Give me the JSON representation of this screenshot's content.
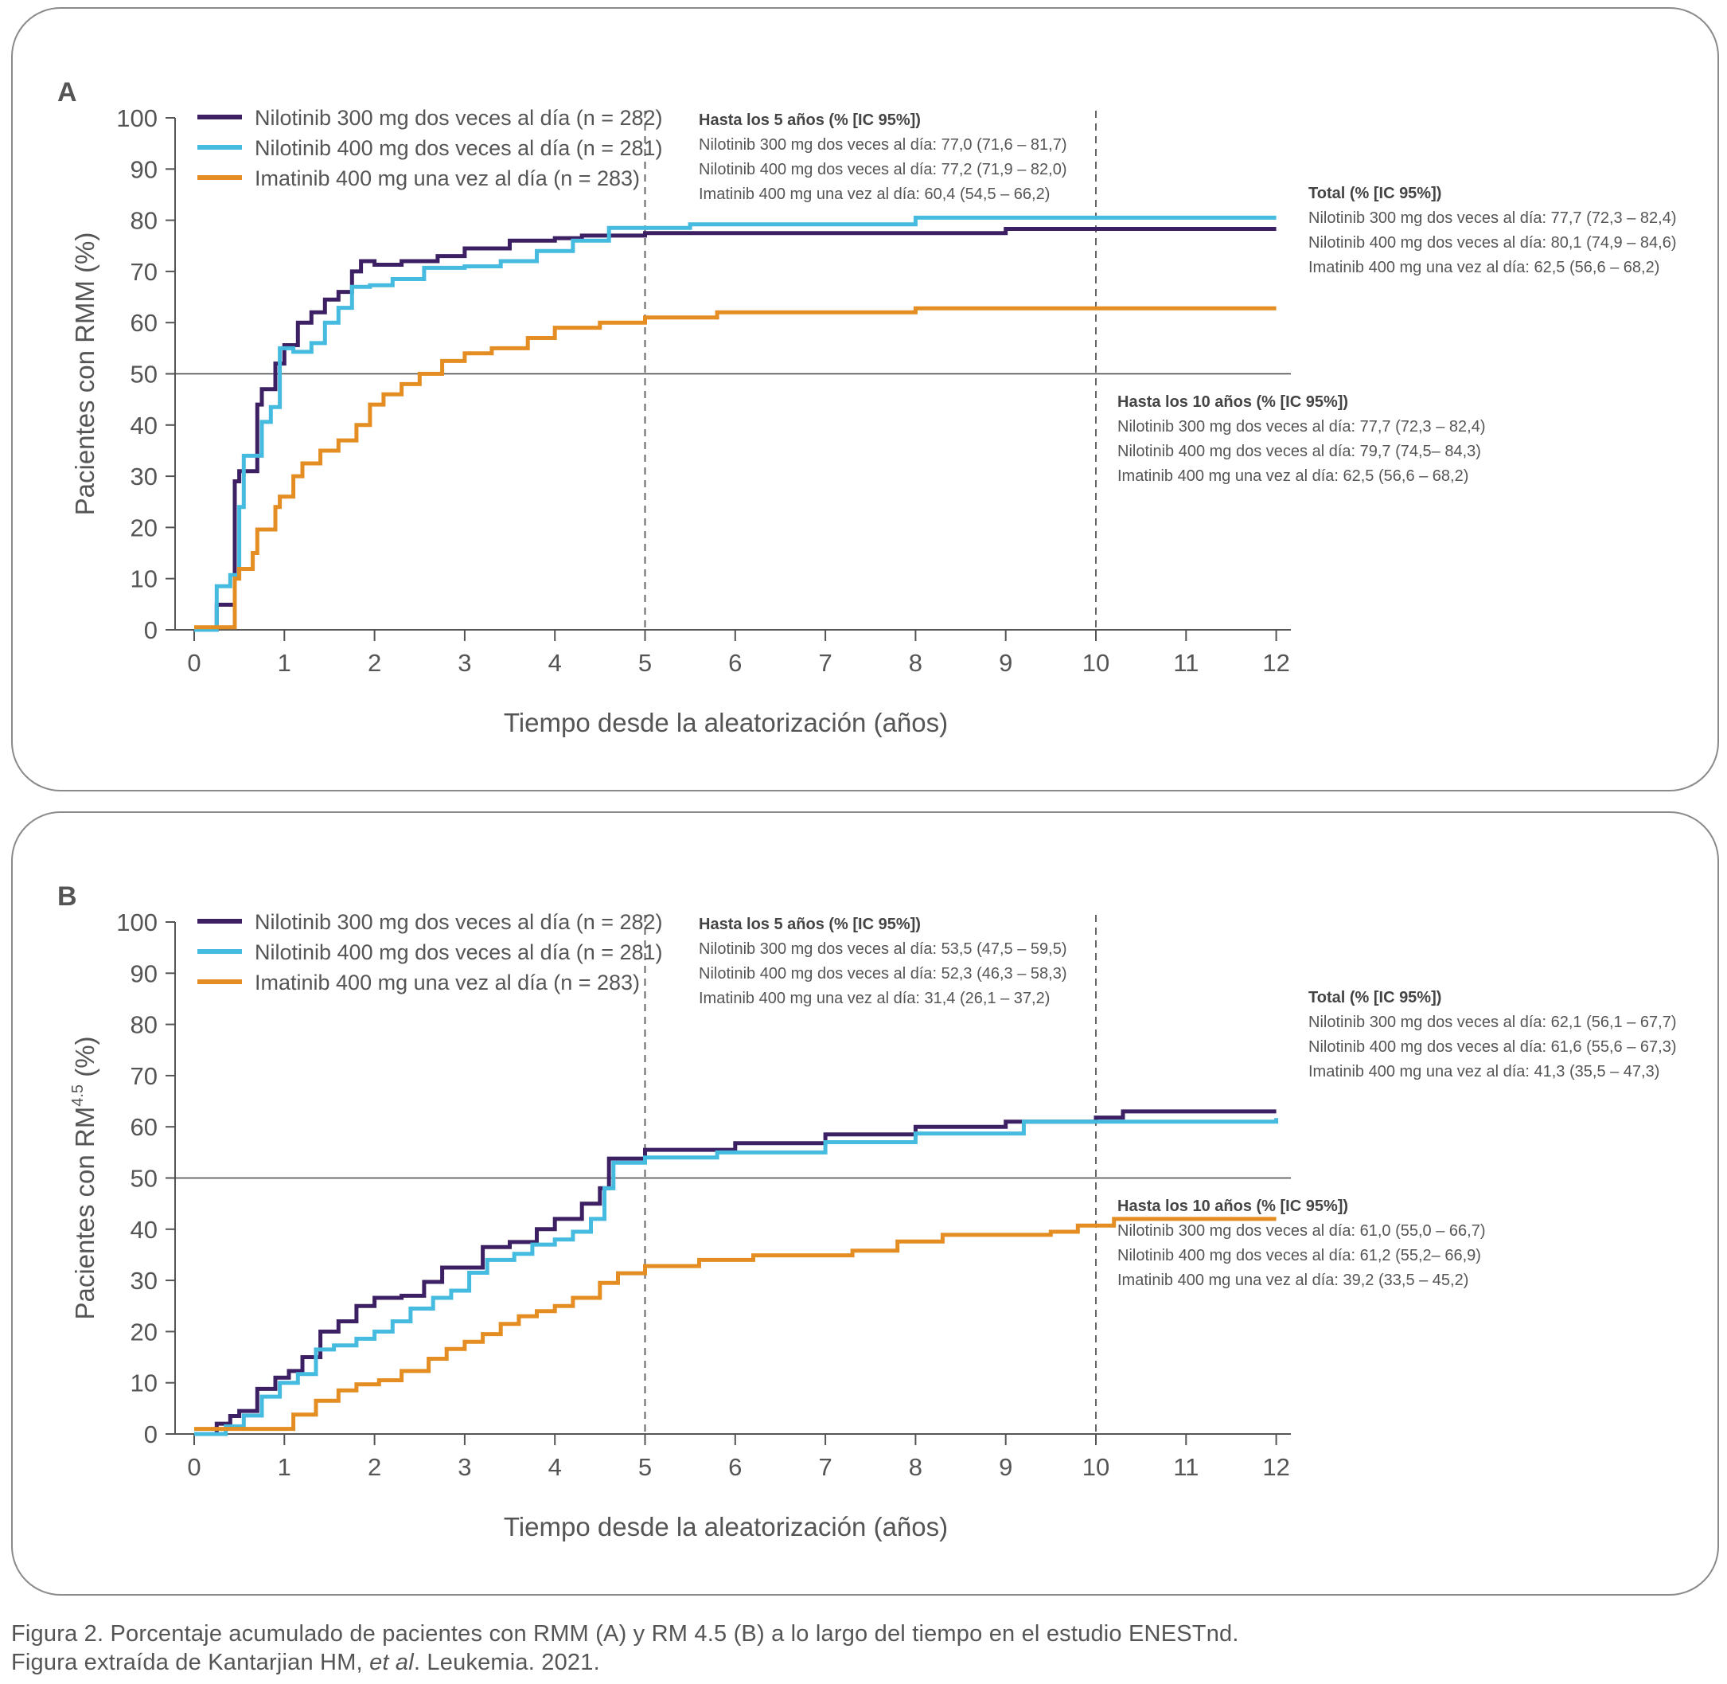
{
  "colors": {
    "nil300": "#3d2064",
    "nil400": "#45bbdf",
    "ima400": "#e48d22",
    "axis": "#555555",
    "ref": "#666666",
    "text": "#555555"
  },
  "caption": {
    "line1": "Figura 2. Porcentaje acumulado de pacientes con RMM (A) y RM 4.5 (B) a lo largo del tiempo en el estudio ENESTnd.",
    "line2_pre": "Figura extraída de Kantarjian HM, ",
    "line2_em": "et al",
    "line2_post": ". Leukemia. 2021."
  },
  "chart_data": [
    {
      "type": "line",
      "panel_label": "A",
      "xlabel": "Tiempo desde la aleatorización (años)",
      "ylabel": "Pacientes con RMM (%)",
      "ylabel_sup": "",
      "ylabel_tail": "",
      "xlim": [
        0,
        12
      ],
      "ylim": [
        0,
        100
      ],
      "xticks": [
        "0",
        "1",
        "2",
        "3",
        "4",
        "5",
        "6",
        "7",
        "8",
        "9",
        "10",
        "11",
        "12"
      ],
      "yticks": [
        "0",
        "10",
        "20",
        "30",
        "40",
        "50",
        "60",
        "70",
        "80",
        "90",
        "100"
      ],
      "reference_line_y": 50,
      "dashed_vertical_x": [
        5,
        10
      ],
      "legend": [
        "Nilotinib 300 mg dos veces al día (n = 282)",
        "Nilotinib 400 mg dos veces al día (n = 281)",
        "Imatinib 400 mg una vez al día (n = 283)"
      ],
      "series": [
        {
          "name": "Nilotinib 300 mg dos veces al día (n = 282)",
          "color_key": "nil300",
          "x": [
            0,
            0.25,
            0.45,
            0.5,
            0.7,
            0.75,
            0.9,
            1.0,
            1.15,
            1.3,
            1.45,
            1.6,
            1.75,
            1.85,
            2.0,
            2.3,
            2.7,
            3.0,
            3.5,
            4.0,
            4.3,
            5.0,
            9.0,
            12.0
          ],
          "y": [
            0,
            4.9,
            29,
            31,
            44,
            47,
            52,
            55.6,
            60,
            62,
            64.5,
            66,
            70,
            72,
            71.3,
            72,
            73,
            74.5,
            76,
            76.5,
            77,
            77.5,
            78.3,
            78.3
          ]
        },
        {
          "name": "Nilotinib 400 mg dos veces al día (n = 281)",
          "color_key": "nil400",
          "x": [
            0,
            0.25,
            0.4,
            0.5,
            0.55,
            0.7,
            0.75,
            0.85,
            0.95,
            1.1,
            1.3,
            1.45,
            1.6,
            1.75,
            1.95,
            2.2,
            2.55,
            3.0,
            3.4,
            3.8,
            4.2,
            4.6,
            5.5,
            8.0,
            12.0
          ],
          "y": [
            0,
            8.5,
            10.7,
            24,
            34,
            34,
            40.6,
            43.5,
            55,
            54.3,
            56,
            60,
            62.9,
            67,
            67.3,
            68.5,
            70.7,
            71,
            72,
            74,
            76,
            78.5,
            79.2,
            80.5,
            80.5
          ]
        },
        {
          "name": "Imatinib 400 mg una vez al día (n = 283)",
          "color_key": "ima400",
          "x": [
            0,
            0.45,
            0.5,
            0.65,
            0.7,
            0.9,
            0.95,
            1.1,
            1.2,
            1.4,
            1.6,
            1.8,
            1.95,
            2.1,
            2.3,
            2.5,
            2.75,
            3.0,
            3.3,
            3.7,
            4.0,
            4.5,
            5.0,
            5.8,
            8.0,
            12.0
          ],
          "y": [
            0.5,
            10,
            11.9,
            15,
            19.6,
            24,
            26,
            30,
            32.5,
            35,
            37,
            40,
            44,
            46,
            48,
            50,
            52.5,
            54,
            55,
            57,
            59,
            60,
            61,
            62,
            62.8,
            62.8
          ]
        }
      ],
      "annotations": [
        {
          "title": "Hasta los 5 años (% [IC 95%])",
          "lines": [
            "Nilotinib 300 mg dos veces al día: 77,0 (71,6 – 81,7)",
            "Nilotinib 400 mg dos veces al día: 77,2 (71,9 – 82,0)",
            "Imatinib 400 mg una vez al día: 60,4 (54,5 – 66,2)"
          ]
        },
        {
          "title": "Total (% [IC 95%])",
          "lines": [
            "Nilotinib 300 mg dos veces al día: 77,7 (72,3 – 82,4)",
            "Nilotinib 400 mg dos veces al día: 80,1 (74,9 – 84,6)",
            "Imatinib 400 mg una vez al día: 62,5 (56,6 – 68,2)"
          ]
        },
        {
          "title": "Hasta los 10 años (% [IC 95%])",
          "lines": [
            "Nilotinib 300 mg dos veces al día: 77,7 (72,3 – 82,4)",
            "Nilotinib 400 mg dos veces al día: 79,7 (74,5– 84,3)",
            "Imatinib 400 mg una vez al día: 62,5 (56,6 – 68,2)"
          ]
        }
      ]
    },
    {
      "type": "line",
      "panel_label": "B",
      "xlabel": "Tiempo desde la aleatorización (años)",
      "ylabel": "Pacientes con RM",
      "ylabel_sup": "4.5",
      "ylabel_tail": " (%)",
      "xlim": [
        0,
        12
      ],
      "ylim": [
        0,
        100
      ],
      "xticks": [
        "0",
        "1",
        "2",
        "3",
        "4",
        "5",
        "6",
        "7",
        "8",
        "9",
        "10",
        "11",
        "12"
      ],
      "yticks": [
        "0",
        "10",
        "20",
        "30",
        "40",
        "50",
        "60",
        "70",
        "80",
        "90",
        "100"
      ],
      "reference_line_y": 50,
      "dashed_vertical_x": [
        5,
        10
      ],
      "legend": [
        "Nilotinib 300 mg dos veces al día (n = 282)",
        "Nilotinib 400 mg dos veces al día (n = 281)",
        "Imatinib 400 mg una vez al día (n = 283)"
      ],
      "series": [
        {
          "name": "Nilotinib 300 mg dos veces al día (n = 282)",
          "color_key": "nil300",
          "x": [
            0,
            0.25,
            0.4,
            0.5,
            0.7,
            0.9,
            1.05,
            1.2,
            1.4,
            1.6,
            1.8,
            2.0,
            2.3,
            2.55,
            2.75,
            3.0,
            3.2,
            3.5,
            3.8,
            4.0,
            4.3,
            4.5,
            4.6,
            5.0,
            6.0,
            7.0,
            8.0,
            9.0,
            10.0,
            10.3,
            12.0
          ],
          "y": [
            0,
            2,
            3.5,
            4.5,
            8.8,
            11,
            12.3,
            15,
            20,
            22,
            25,
            26.6,
            27,
            29.7,
            32.5,
            32.5,
            36.5,
            37.5,
            40,
            42,
            45,
            48,
            53.8,
            55.5,
            56.8,
            58.5,
            60,
            61,
            61.8,
            63,
            63
          ]
        },
        {
          "name": "Nilotinib 400 mg dos veces al día (n = 281)",
          "color_key": "nil400",
          "x": [
            0,
            0.35,
            0.55,
            0.75,
            0.95,
            1.15,
            1.35,
            1.55,
            1.8,
            2.0,
            2.2,
            2.4,
            2.65,
            2.85,
            3.05,
            3.25,
            3.55,
            3.75,
            4.0,
            4.2,
            4.4,
            4.55,
            4.65,
            5.0,
            5.8,
            7.0,
            8.0,
            9.2,
            12.0
          ],
          "y": [
            0,
            1.5,
            3.6,
            7.3,
            10,
            11.7,
            16.5,
            17.3,
            18.6,
            20,
            22,
            24.5,
            26.6,
            28,
            31.5,
            34,
            35.2,
            37,
            38,
            39.5,
            42,
            48,
            53,
            54,
            55,
            57,
            58.7,
            61,
            61.7
          ]
        },
        {
          "name": "Imatinib 400 mg una vez al día (n = 283)",
          "color_key": "ima400",
          "x": [
            0,
            0.9,
            1.1,
            1.35,
            1.6,
            1.8,
            2.05,
            2.3,
            2.6,
            2.8,
            3.0,
            3.2,
            3.4,
            3.6,
            3.8,
            4.0,
            4.2,
            4.5,
            4.7,
            5.0,
            5.6,
            6.2,
            7.3,
            7.8,
            8.3,
            9.5,
            9.8,
            10.2,
            12.0
          ],
          "y": [
            1,
            1,
            3.8,
            6.5,
            8.5,
            9.7,
            10.5,
            12.3,
            14.7,
            16.6,
            18,
            19.5,
            21.5,
            23,
            24,
            25,
            26.6,
            29.5,
            31.4,
            32.8,
            34,
            34.9,
            35.8,
            37.6,
            38.9,
            39.5,
            40.7,
            42,
            42
          ]
        }
      ],
      "annotations": [
        {
          "title": "Hasta los 5 años (% [IC 95%])",
          "lines": [
            "Nilotinib 300 mg dos veces al día: 53,5 (47,5 – 59,5)",
            "Nilotinib 400 mg dos veces al día: 52,3 (46,3 – 58,3)",
            "Imatinib 400 mg una vez al día: 31,4 (26,1 – 37,2)"
          ]
        },
        {
          "title": "Total (% [IC 95%])",
          "lines": [
            "Nilotinib 300 mg dos veces al día: 62,1 (56,1 – 67,7)",
            "Nilotinib 400 mg dos veces al día: 61,6 (55,6 – 67,3)",
            "Imatinib 400 mg una vez al día: 41,3 (35,5 – 47,3)"
          ]
        },
        {
          "title": "Hasta los 10 años (% [IC 95%])",
          "lines": [
            "Nilotinib 300 mg dos veces al día: 61,0 (55,0 – 66,7)",
            "Nilotinib 400 mg dos veces al día: 61,2 (55,2– 66,9)",
            "Imatinib 400 mg una vez al día: 39,2 (33,5 – 45,2)"
          ]
        }
      ]
    }
  ]
}
